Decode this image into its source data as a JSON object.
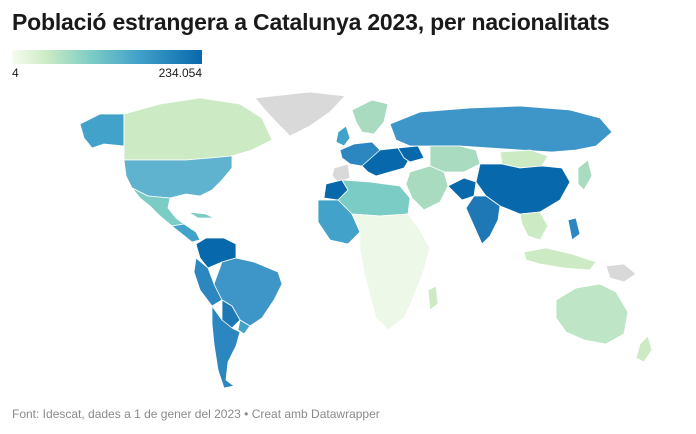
{
  "title": "Població estrangera a Catalunya 2023, per nacionalitats",
  "legend": {
    "min_label": "4",
    "max_label": "234.054",
    "scale_colors": [
      "#f7fcf0",
      "#ccebc5",
      "#7bccc4",
      "#43a2ca",
      "#0868ac"
    ]
  },
  "footer": "Font: Idescat, dades a 1 de gener del 2023 • Creat amb Datawrapper",
  "colors": {
    "nodata": "#d9d9d9",
    "border": "#ffffff"
  }
}
